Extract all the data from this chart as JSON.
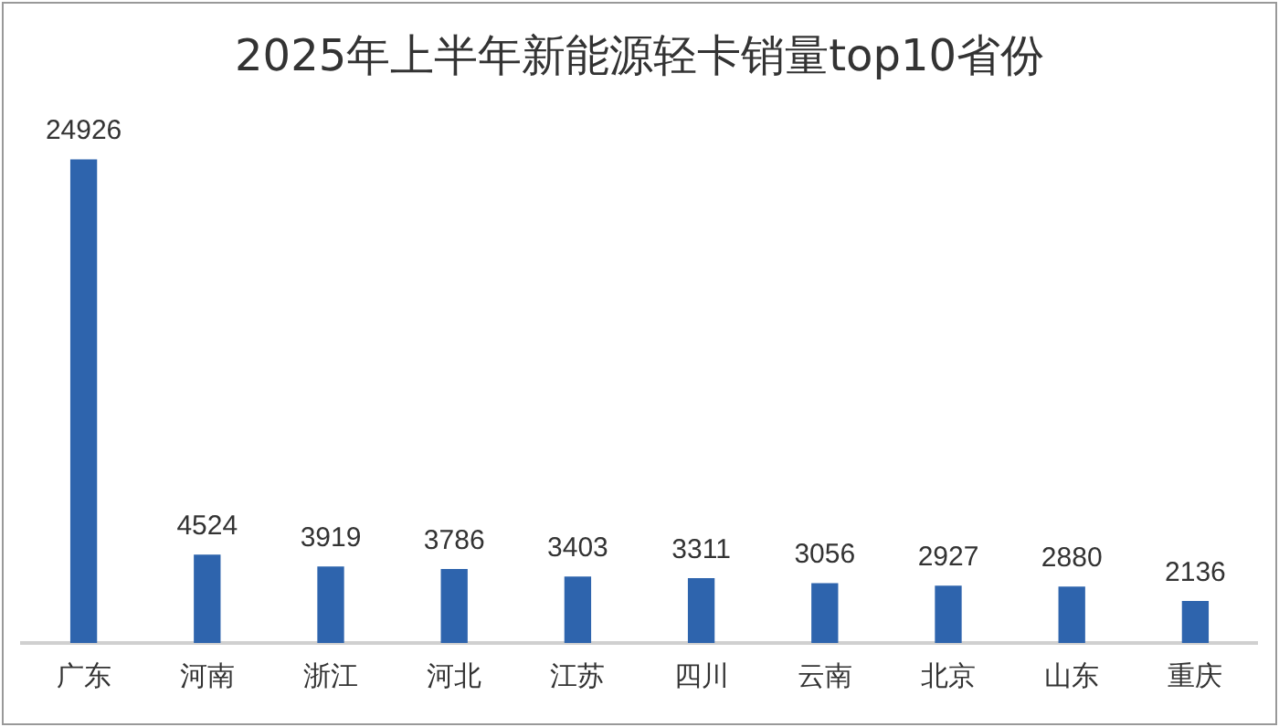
{
  "chart_data": {
    "type": "bar",
    "title": "2025年上半年新能源轻卡销量top10省份",
    "categories": [
      "广东",
      "河南",
      "浙江",
      "河北",
      "江苏",
      "四川",
      "云南",
      "北京",
      "山东",
      "重庆"
    ],
    "values": [
      24926,
      4524,
      3919,
      3786,
      3403,
      3311,
      3056,
      2927,
      2880,
      2136
    ],
    "color": "#2e64ad",
    "tick_labels": "x",
    "grid": false,
    "legend": false,
    "data_labels": true
  }
}
